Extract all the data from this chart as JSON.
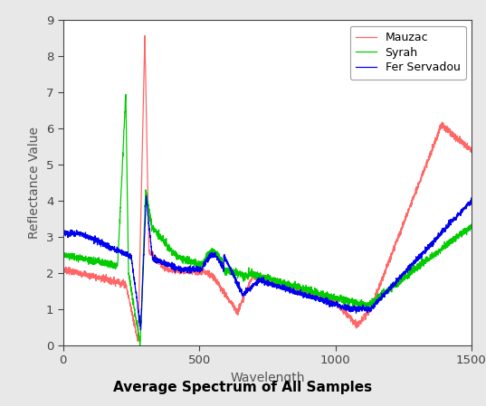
{
  "title": "Average Spectrum of All Samples",
  "xlabel": "Wavelength",
  "ylabel": "Reflectance Value",
  "xlim": [
    0,
    1500
  ],
  "ylim": [
    0,
    9
  ],
  "yticks": [
    0,
    1,
    2,
    3,
    4,
    5,
    6,
    7,
    8,
    9
  ],
  "xticks": [
    0,
    500,
    1000,
    1500
  ],
  "legend": [
    "Mauzac",
    "Syrah",
    "Fer Servadou"
  ],
  "line_colors": [
    "#FF6666",
    "#00CC00",
    "#0000EE"
  ],
  "outer_bg": "#E8E8E8",
  "plot_bg": "#FFFFFF"
}
